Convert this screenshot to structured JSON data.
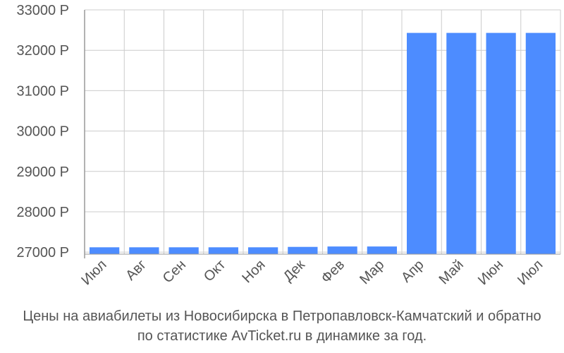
{
  "chart_data": {
    "type": "bar",
    "categories": [
      "Июл",
      "Авг",
      "Сен",
      "Окт",
      "Ноя",
      "Дек",
      "Фев",
      "Мар",
      "Апр",
      "Май",
      "Июн",
      "Июл"
    ],
    "values": [
      27120,
      27120,
      27120,
      27120,
      27120,
      27130,
      27140,
      27140,
      32430,
      32430,
      32430,
      32430
    ],
    "y_ticks": [
      "27000 Р",
      "28000 Р",
      "29000 Р",
      "30000 Р",
      "31000 Р",
      "32000 Р",
      "33000 Р"
    ],
    "ylim": [
      26950,
      33000
    ],
    "grid": true,
    "legend": "none",
    "bar_color": "#4d8cff",
    "grid_color": "#cccccc",
    "axis_color": "#999999",
    "text_color": "#555555"
  },
  "caption": {
    "line1": "Цены на авиабилеты из Новосибирска в Петропавловск-Камчатский и обратно",
    "line2": "по статистике AvTicket.ru в динамике за год."
  }
}
